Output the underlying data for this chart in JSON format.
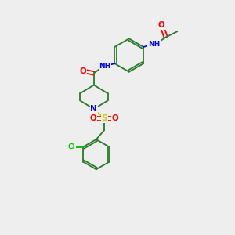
{
  "bg_color": "#eeeeee",
  "atom_colors": {
    "O": "#ff0000",
    "N": "#0000ff",
    "S": "#cccc00",
    "Cl": "#00bb00",
    "C": "#2a7a2a",
    "H": "#555555"
  },
  "bond_color": "#2a7a2a",
  "font_size": 6.5,
  "fig_width": 3.0,
  "fig_height": 3.0
}
